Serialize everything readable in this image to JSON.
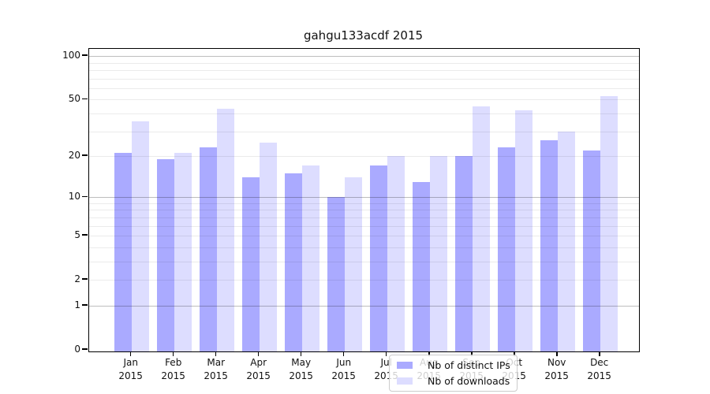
{
  "title": "gahgu133acdf 2015",
  "chart_data": {
    "type": "bar",
    "categories": [
      "Jan",
      "Feb",
      "Mar",
      "Apr",
      "May",
      "Jun",
      "Jul",
      "Aug",
      "Sep",
      "Oct",
      "Nov",
      "Dec"
    ],
    "year": "2015",
    "series": [
      {
        "name": "Nb of distinct IPs",
        "color": "#aaaaff",
        "values": [
          21,
          19,
          23,
          14,
          15,
          10,
          17,
          13,
          20,
          23,
          26,
          22
        ]
      },
      {
        "name": "Nb of downloads",
        "color": "#ddddff",
        "values": [
          35,
          21,
          43,
          25,
          17,
          14,
          20,
          20,
          45,
          42,
          30,
          53
        ]
      }
    ],
    "yscale": "log10(value+1)",
    "ylim": [
      0,
      113
    ],
    "y_major_ticks": [
      100,
      50,
      20,
      10,
      5,
      2,
      1,
      0
    ],
    "y_major_gridlines": [
      100,
      10,
      1
    ],
    "y_minor_gridlines": [
      90,
      80,
      70,
      60,
      50,
      40,
      30,
      20,
      9,
      8,
      7,
      6,
      5,
      4,
      3,
      2
    ],
    "grid": true,
    "legend_position": "lower center",
    "xlabel": "",
    "ylabel": ""
  },
  "legend": {
    "swatch_colors": [
      "#aaaaff",
      "#ddddff"
    ]
  }
}
